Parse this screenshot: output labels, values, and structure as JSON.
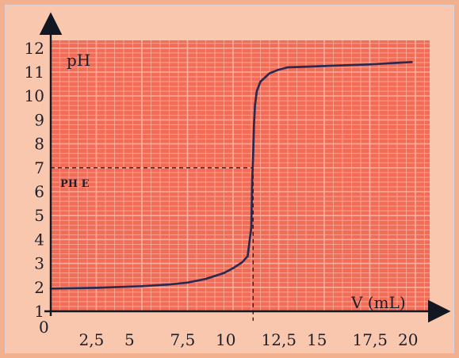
{
  "chart_data": {
    "type": "line",
    "title": "",
    "xlabel": "V (mL)",
    "ylabel": "pH",
    "xlim": [
      0,
      20
    ],
    "ylim": [
      1,
      12
    ],
    "x_ticks": [
      {
        "value": 0,
        "label": "0"
      },
      {
        "value": 2.5,
        "label": "2,5"
      },
      {
        "value": 5,
        "label": "5"
      },
      {
        "value": 7.5,
        "label": "7,5"
      },
      {
        "value": 10,
        "label": "10"
      },
      {
        "value": 12.5,
        "label": "12,5"
      },
      {
        "value": 15,
        "label": "15"
      },
      {
        "value": 17.5,
        "label": "17,5"
      },
      {
        "value": 20,
        "label": "20"
      }
    ],
    "y_ticks": [
      {
        "value": 1,
        "label": "1"
      },
      {
        "value": 2,
        "label": "2"
      },
      {
        "value": 3,
        "label": "3"
      },
      {
        "value": 4,
        "label": "4"
      },
      {
        "value": 5,
        "label": "5"
      },
      {
        "value": 6,
        "label": "6"
      },
      {
        "value": 7,
        "label": "7"
      },
      {
        "value": 8,
        "label": "8"
      },
      {
        "value": 9,
        "label": "9"
      },
      {
        "value": 10,
        "label": "10"
      },
      {
        "value": 11,
        "label": "11"
      },
      {
        "value": 12,
        "label": "12"
      }
    ],
    "grid": true,
    "series": [
      {
        "x": [
          0,
          2.5,
          5,
          6.5,
          7.5,
          8.5,
          9.5,
          10,
          10.5,
          10.8,
          11.0,
          11.05,
          11.1,
          11.15,
          11.2,
          11.3,
          11.5,
          12,
          12.5,
          13,
          15,
          17.5,
          19.8
        ],
        "y": [
          1.95,
          1.98,
          2.05,
          2.12,
          2.2,
          2.35,
          2.6,
          2.8,
          3.05,
          3.3,
          4.5,
          6.5,
          7.5,
          8.8,
          9.6,
          10.2,
          10.6,
          10.95,
          11.1,
          11.2,
          11.25,
          11.32,
          11.42
        ]
      }
    ],
    "annotations": [
      {
        "label": "PH E",
        "x": 11.1,
        "y": 7,
        "style": "dashed"
      }
    ],
    "colors": {
      "background": "#f26d58",
      "grid": "#ffb1a1",
      "curve": "#2a2950",
      "axis": "#121722"
    }
  }
}
